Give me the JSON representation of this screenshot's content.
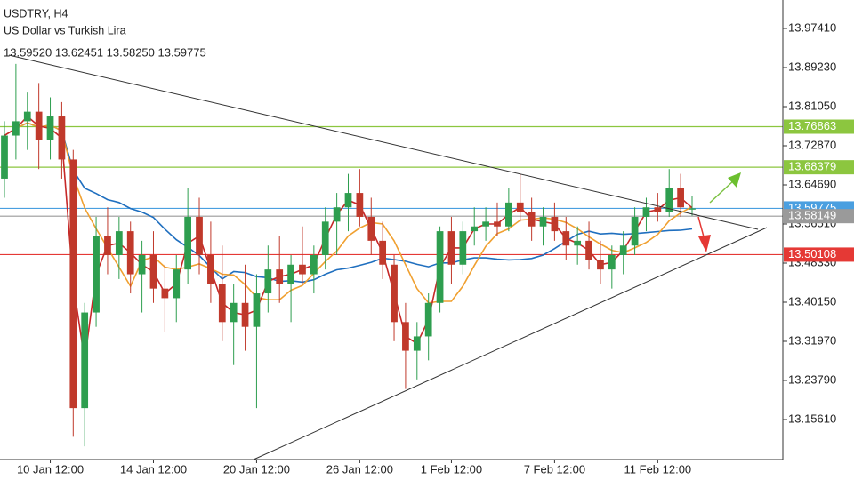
{
  "chart_data": {
    "type": "candlestick",
    "title": "USDTRY, H4",
    "subtitle": "US Dollar vs Turkish Lira",
    "quote": "13.59520 13.62451 13.58250 13.59775",
    "categories": [
      null,
      null,
      null,
      null,
      "10 Jan 12:00",
      null,
      null,
      null,
      null,
      null,
      null,
      null,
      null,
      "14 Jan 12:00",
      null,
      null,
      null,
      null,
      null,
      null,
      null,
      null,
      "20 Jan 12:00",
      null,
      null,
      null,
      null,
      null,
      null,
      null,
      null,
      "26 Jan 12:00",
      null,
      null,
      null,
      null,
      null,
      null,
      null,
      "1 Feb 12:00",
      null,
      null,
      null,
      null,
      null,
      null,
      null,
      null,
      "7 Feb 12:00",
      null,
      null,
      null,
      null,
      null,
      null,
      null,
      null,
      "11 Feb 12:00",
      null,
      null,
      null
    ],
    "open": [
      13.66,
      13.75,
      13.78,
      13.8,
      13.74,
      13.79,
      13.7,
      13.18,
      13.38,
      13.54,
      13.5,
      13.55,
      13.46,
      13.5,
      13.43,
      13.41,
      13.47,
      13.58,
      13.5,
      13.44,
      13.36,
      13.4,
      13.35,
      13.42,
      13.47,
      13.44,
      13.48,
      13.46,
      13.5,
      13.57,
      13.6,
      13.63,
      13.58,
      13.53,
      13.48,
      13.36,
      13.3,
      13.33,
      13.4,
      13.55,
      13.48,
      13.55,
      13.56,
      13.57,
      13.56,
      13.61,
      13.59,
      13.56,
      13.58,
      13.55,
      13.52,
      13.53,
      13.49,
      13.47,
      13.5,
      13.52,
      13.58,
      13.6,
      13.59,
      13.64,
      13.5952
    ],
    "high": [
      13.78,
      13.9,
      13.84,
      13.86,
      13.83,
      13.82,
      13.72,
      13.4,
      13.58,
      13.6,
      13.58,
      13.57,
      13.53,
      13.55,
      13.48,
      13.5,
      13.64,
      13.62,
      13.57,
      13.52,
      13.44,
      13.48,
      13.46,
      13.52,
      13.54,
      13.5,
      13.56,
      13.52,
      13.6,
      13.63,
      13.67,
      13.68,
      13.62,
      13.57,
      13.5,
      13.4,
      13.36,
      13.42,
      13.56,
      13.58,
      13.57,
      13.6,
      13.6,
      13.61,
      13.64,
      13.67,
      13.62,
      13.6,
      13.61,
      13.58,
      13.56,
      13.57,
      13.53,
      13.52,
      13.55,
      13.6,
      13.62,
      13.63,
      13.68,
      13.67,
      13.62451
    ],
    "low": [
      13.62,
      13.7,
      13.72,
      13.68,
      13.7,
      13.66,
      13.12,
      13.1,
      13.35,
      13.46,
      13.45,
      13.42,
      13.38,
      13.4,
      13.34,
      13.36,
      13.44,
      13.46,
      13.4,
      13.32,
      13.27,
      13.3,
      13.18,
      13.38,
      13.4,
      13.36,
      13.44,
      13.42,
      13.47,
      13.5,
      13.55,
      13.56,
      13.5,
      13.45,
      13.32,
      13.22,
      13.24,
      13.28,
      13.38,
      13.44,
      13.46,
      13.52,
      13.53,
      13.54,
      13.55,
      13.57,
      13.53,
      13.52,
      13.53,
      13.49,
      13.48,
      13.47,
      13.44,
      13.43,
      13.46,
      13.5,
      13.55,
      13.57,
      13.58,
      13.58,
      13.5825
    ],
    "close": [
      13.75,
      13.78,
      13.8,
      13.74,
      13.79,
      13.7,
      13.18,
      13.38,
      13.54,
      13.5,
      13.55,
      13.46,
      13.5,
      13.43,
      13.41,
      13.47,
      13.58,
      13.5,
      13.44,
      13.36,
      13.4,
      13.35,
      13.42,
      13.47,
      13.44,
      13.48,
      13.46,
      13.5,
      13.57,
      13.6,
      13.63,
      13.58,
      13.53,
      13.48,
      13.36,
      13.3,
      13.33,
      13.4,
      13.55,
      13.48,
      13.55,
      13.56,
      13.57,
      13.56,
      13.61,
      13.59,
      13.56,
      13.58,
      13.55,
      13.52,
      13.53,
      13.49,
      13.47,
      13.5,
      13.52,
      13.58,
      13.6,
      13.59,
      13.64,
      13.6,
      13.59775
    ],
    "up_color": "#2e9e4f",
    "down_color": "#c0392b",
    "ylim": [
      13.0724,
      14.0336
    ],
    "yticks": [
      {
        "value": 13.9741,
        "label": "13.97410"
      },
      {
        "value": 13.8923,
        "label": "13.89230"
      },
      {
        "value": 13.8105,
        "label": "13.81050"
      },
      {
        "value": 13.7287,
        "label": "13.72870"
      },
      {
        "value": 13.6469,
        "label": "13.64690"
      },
      {
        "value": 13.5651,
        "label": "13.56510"
      },
      {
        "value": 13.4833,
        "label": "13.48330"
      },
      {
        "value": 13.4015,
        "label": "13.40150"
      },
      {
        "value": 13.3197,
        "label": "13.31970"
      },
      {
        "value": 13.2379,
        "label": "13.23790"
      },
      {
        "value": 13.1561,
        "label": "13.15610"
      }
    ],
    "levels": [
      {
        "value": 13.76863,
        "label": "13.76863",
        "color": "#8cc63f"
      },
      {
        "value": 13.68379,
        "label": "13.68379",
        "color": "#8cc63f"
      },
      {
        "value": 13.59775,
        "label": "13.59775",
        "color": "#4a9fe0"
      },
      {
        "value": 13.58149,
        "label": "13.58149",
        "color": "#9a9a9a"
      },
      {
        "value": 13.50108,
        "label": "13.50108",
        "color": "#e53935"
      }
    ]
  }
}
